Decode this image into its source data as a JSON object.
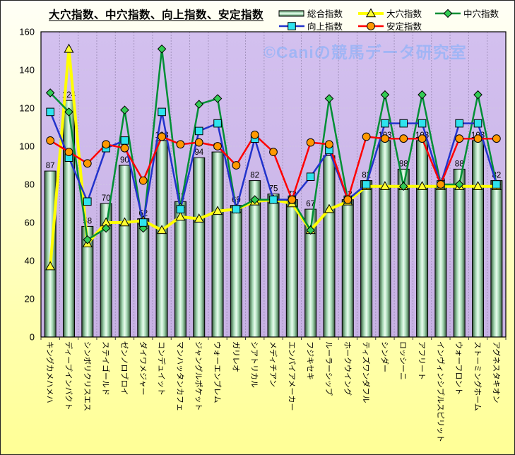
{
  "title": "大穴指数、中穴指数、向上指数、安定指数",
  "watermark": "©Caniの競馬データ研究室",
  "colors": {
    "plot_background": "#cdb9e9",
    "figure_background": "#ffffa8",
    "grid_horizontal": "#cfc4e2",
    "grid_vertical": "#a393bd",
    "bar_fill_light": "#eafcef",
    "bar_fill_mid": "#a6d8b4",
    "bar_fill_dark": "#223f30",
    "watermark_color": "#8db2f8",
    "axis_text": "#000000"
  },
  "chart_data": {
    "type": "bar",
    "title": "大穴指数、中穴指数、向上指数、安定指数",
    "xlabel": "",
    "ylabel": "",
    "ylim": [
      0,
      160
    ],
    "ytick_step": 20,
    "grid": true,
    "legend_position": "top-right",
    "bar_value_labels_shown": true,
    "categories": [
      "キングカメハメハ",
      "ディープインパクト",
      "シンボリクリスエス",
      "ステイゴールド",
      "ゼンノロブロイ",
      "ダイワメジャー",
      "コンデュイット",
      "マンハッタンカフェ",
      "ジャングルポケット",
      "ウォーエンブレム",
      "ガリレオ",
      "シアトリカル",
      "メディチアン",
      "エンパイアメーカー",
      "フジキセキ",
      "ルーラーシップ",
      "ホークウイング",
      "ティズワンダフル",
      "シンダー",
      "ロッシーニ",
      "アフリート",
      "インヴィンシブルスピリット",
      "ウォーフロント",
      "ストーミングホーム",
      "アグネスタキオン"
    ],
    "series": [
      {
        "name": "総合指数",
        "type": "bar",
        "color": "#a6d8b4",
        "values": [
          87,
          124,
          58,
          70,
          90,
          62,
          103,
          71,
          94,
          97,
          69,
          82,
          75,
          72,
          67,
          95,
          72,
          82,
          103,
          88,
          103,
          79,
          88,
          103,
          82
        ]
      },
      {
        "name": "大穴指数",
        "type": "line",
        "marker": "triangle",
        "color": "#ffff00",
        "marker_color": "#ffff33",
        "values": [
          37,
          151,
          49,
          60,
          60,
          61,
          56,
          63,
          62,
          66,
          67,
          71,
          72,
          70,
          56,
          67,
          71,
          79,
          79,
          79,
          79,
          79,
          79,
          79,
          79
        ]
      },
      {
        "name": "中穴指数",
        "type": "line",
        "marker": "diamond",
        "color": "#008f35",
        "marker_color": "#33cc55",
        "values": [
          128,
          118,
          51,
          57,
          119,
          57,
          151,
          68,
          122,
          125,
          67,
          72,
          72,
          72,
          56,
          125,
          72,
          80,
          127,
          79,
          127,
          80,
          80,
          127,
          80
        ]
      },
      {
        "name": "向上指数",
        "type": "line",
        "marker": "square",
        "color": "#2233cc",
        "marker_color": "#2fe3ee",
        "values": [
          118,
          94,
          71,
          99,
          103,
          60,
          118,
          67,
          108,
          112,
          67,
          104,
          72,
          72,
          84,
          98,
          72,
          80,
          112,
          112,
          112,
          80,
          112,
          112,
          80
        ]
      },
      {
        "name": "安定指数",
        "type": "line",
        "marker": "circle",
        "color": "#ff0000",
        "marker_color": "#ff9900",
        "values": [
          103,
          97,
          91,
          101,
          99,
          82,
          105,
          101,
          102,
          100,
          90,
          106,
          97,
          72,
          102,
          101,
          72,
          105,
          104,
          104,
          104,
          80,
          104,
          104,
          104
        ]
      }
    ]
  }
}
